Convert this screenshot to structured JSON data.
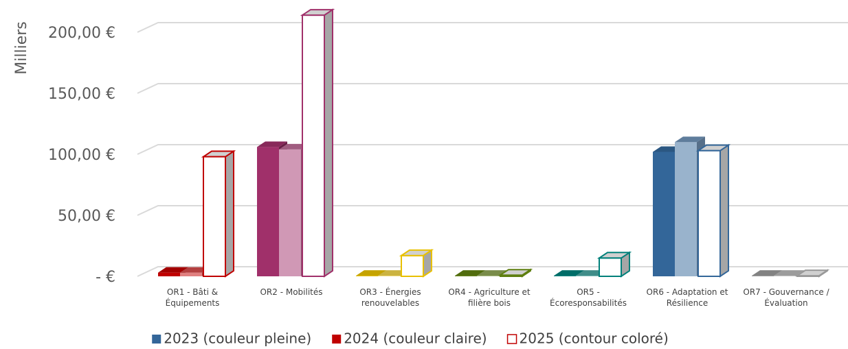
{
  "chart_data": {
    "type": "bar3d",
    "y_axis_label": "Milliers",
    "categories": [
      "OR1 - Bâti & Équipements",
      "OR2 - Mobilités",
      "OR3 - Énergies renouvelables",
      "OR4 - Agriculture et filière bois",
      "OR5 - Écoresponsabilités",
      "OR6 - Adaptation et Résilience",
      "OR7 - Gouvernance / Évaluation"
    ],
    "category_colors": [
      "#c00000",
      "#a0306a",
      "#e8c000",
      "#5f7f10",
      "#00807a",
      "#336699",
      "#999999"
    ],
    "series": [
      {
        "name": "2023 (couleur pleine)",
        "color": "#336699",
        "style": "solid",
        "values": [
          3,
          106,
          0.5,
          0.5,
          0.5,
          102,
          0.5
        ]
      },
      {
        "name": "2024 (couleur claire)",
        "color": "#c00000",
        "style": "light",
        "values": [
          3,
          104,
          0.5,
          0.5,
          0.5,
          110,
          0.5
        ]
      },
      {
        "name": "2025 (contour coloré)",
        "color": "#c00000",
        "style": "outline",
        "values": [
          98,
          214,
          17,
          1,
          15,
          103,
          0.5
        ]
      }
    ],
    "ylim": [
      0,
      220
    ],
    "yticks": [
      {
        "value": 0,
        "label": "-  €"
      },
      {
        "value": 50,
        "label": "50,00 €"
      },
      {
        "value": 100,
        "label": "100,00 €"
      },
      {
        "value": 150,
        "label": "150,00 €"
      },
      {
        "value": 200,
        "label": "200,00 €"
      }
    ],
    "grid": true
  }
}
